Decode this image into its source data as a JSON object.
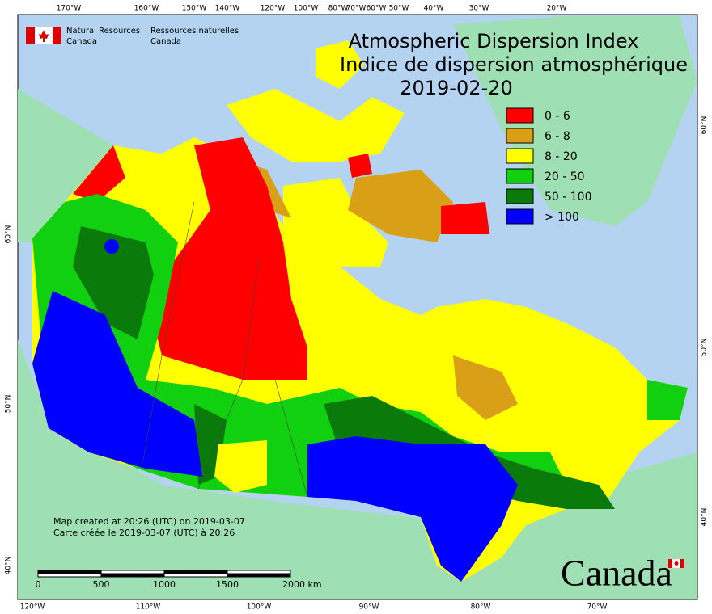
{
  "header": {
    "logo_en": [
      "Natural Resources",
      "Canada"
    ],
    "logo_fr": [
      "Ressources naturelles",
      "Canada"
    ]
  },
  "title": {
    "lines": [
      "Atmospheric Dispersion Index",
      "Indice de dispersion atmosphérique",
      "2019-02-20"
    ]
  },
  "legend": {
    "items": [
      {
        "label": "0 - 6",
        "color": "#ff0000"
      },
      {
        "label": "6 - 8",
        "color": "#d9a017"
      },
      {
        "label": "8 - 20",
        "color": "#ffff00"
      },
      {
        "label": "20 - 50",
        "color": "#10d010"
      },
      {
        "label": "50 - 100",
        "color": "#0a7a0a"
      },
      {
        "label": "> 100",
        "color": "#0000ff"
      }
    ]
  },
  "graticule": {
    "top": [
      "170°W",
      "160°W",
      "150°W",
      "140°W",
      "120°W",
      "100°W",
      "80°W",
      "70°W",
      "60°W",
      "50°W",
      "40°W",
      "30°W",
      "20°W"
    ],
    "bottom": [
      "120°W",
      "110°W",
      "100°W",
      "90°W",
      "80°W",
      "70°W"
    ],
    "left": [
      "60°N",
      "50°N",
      "40°N"
    ],
    "right": [
      "60°N",
      "50°N",
      "40°N"
    ]
  },
  "notes": [
    "Map created at 20:26 (UTC) on 2019-03-07",
    "Carte créée le 2019-03-07 (UTC) à 20:26"
  ],
  "scale_bar": {
    "labels": [
      "0",
      "500",
      "1000",
      "1500",
      "2000 km"
    ]
  },
  "wordmark": "Canada"
}
